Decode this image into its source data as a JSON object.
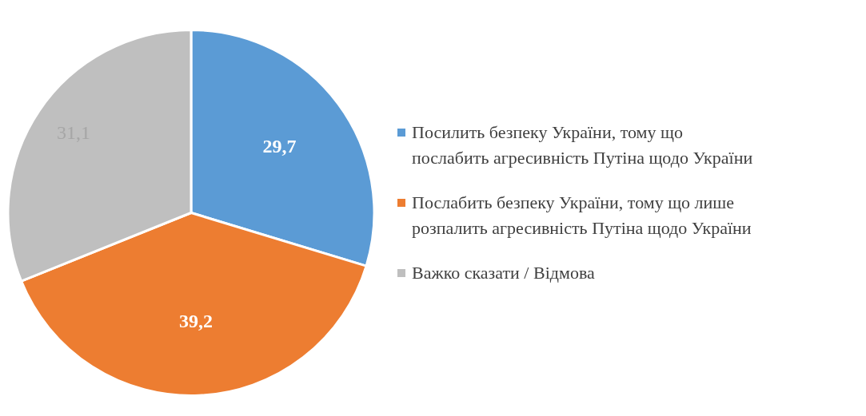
{
  "chart_data": {
    "type": "pie",
    "categories": [
      "Посилить безпеку України, тому що\nпослабить агресивність Путіна щодо України",
      "Послабить безпеку України, тому що лише\nрозпалить агресивність Путіна щодо України",
      "Важко сказати / Відмова"
    ],
    "values": [
      29.7,
      39.2,
      31.1
    ],
    "colors": [
      "#5b9bd5",
      "#ed7d31",
      "#bfbfbf"
    ],
    "value_labels": [
      "29,7",
      "39,2",
      "31,1"
    ],
    "legend": "right"
  }
}
